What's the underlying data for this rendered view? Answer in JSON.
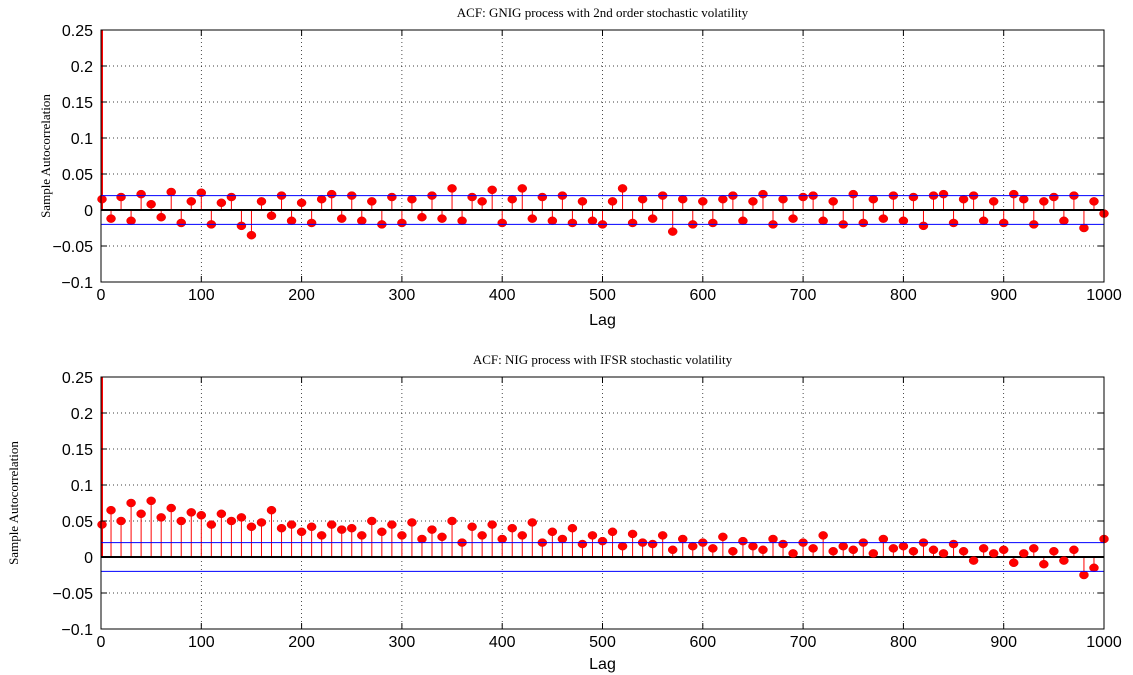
{
  "chart_data": [
    {
      "type": "stem",
      "title": "ACF: GNIG process with 2nd order stochastic volatility",
      "xlabel": "Lag",
      "ylabel": "Sample Autocorrelation",
      "xlim": [
        0,
        1000
      ],
      "ylim": [
        -0.1,
        0.25
      ],
      "x_ticks": [
        "0",
        "100",
        "200",
        "300",
        "400",
        "500",
        "600",
        "700",
        "800",
        "900",
        "1000"
      ],
      "y_ticks": [
        "−0.1",
        "−0.05",
        "0",
        "0.05",
        "0.1",
        "0.15",
        "0.2",
        "0.25"
      ],
      "grid": true,
      "confidence_bounds": [
        0.02,
        -0.02
      ],
      "lag0_value": 1.0,
      "sampled_lags": [
        1,
        10,
        20,
        30,
        40,
        50,
        60,
        70,
        80,
        90,
        100,
        110,
        120,
        130,
        140,
        150,
        160,
        170,
        180,
        190,
        200,
        210,
        220,
        230,
        240,
        250,
        260,
        270,
        280,
        290,
        300,
        310,
        320,
        330,
        340,
        350,
        360,
        370,
        380,
        390,
        400,
        410,
        420,
        430,
        440,
        450,
        460,
        470,
        480,
        490,
        500,
        510,
        520,
        530,
        540,
        550,
        560,
        570,
        580,
        590,
        600,
        610,
        620,
        630,
        640,
        650,
        660,
        670,
        680,
        690,
        700,
        710,
        720,
        730,
        740,
        750,
        760,
        770,
        780,
        790,
        800,
        810,
        820,
        830,
        840,
        850,
        860,
        870,
        880,
        890,
        900,
        910,
        920,
        930,
        940,
        950,
        960,
        970,
        980,
        990,
        1000
      ],
      "values": [
        0.015,
        -0.012,
        0.018,
        -0.015,
        0.022,
        0.008,
        -0.01,
        0.025,
        -0.018,
        0.012,
        0.024,
        -0.02,
        0.01,
        0.018,
        -0.022,
        -0.035,
        0.012,
        -0.008,
        0.02,
        -0.015,
        0.01,
        -0.018,
        0.015,
        0.022,
        -0.012,
        0.02,
        -0.015,
        0.012,
        -0.02,
        0.018,
        -0.018,
        0.015,
        -0.01,
        0.02,
        -0.012,
        0.03,
        -0.015,
        0.018,
        0.012,
        0.028,
        -0.018,
        0.015,
        0.03,
        -0.012,
        0.018,
        -0.015,
        0.02,
        -0.018,
        0.012,
        -0.015,
        -0.02,
        0.012,
        0.03,
        -0.018,
        0.015,
        -0.012,
        0.02,
        -0.03,
        0.015,
        -0.02,
        0.012,
        -0.018,
        0.015,
        0.02,
        -0.015,
        0.012,
        0.022,
        -0.02,
        0.015,
        -0.012,
        0.018,
        0.02,
        -0.015,
        0.012,
        -0.02,
        0.022,
        -0.018,
        0.015,
        -0.012,
        0.02,
        -0.015,
        0.018,
        -0.022,
        0.02,
        0.022,
        -0.018,
        0.015,
        0.02,
        -0.015,
        0.012,
        -0.018,
        0.022,
        0.015,
        -0.02,
        0.012,
        0.018,
        -0.015,
        0.02,
        -0.025,
        0.012,
        -0.005
      ]
    },
    {
      "type": "stem",
      "title": "ACF: NIG process with IFSR stochastic volatility",
      "xlabel": "Lag",
      "ylabel": "Sample Autocorrelation",
      "xlim": [
        0,
        1000
      ],
      "ylim": [
        -0.1,
        0.25
      ],
      "x_ticks": [
        "0",
        "100",
        "200",
        "300",
        "400",
        "500",
        "600",
        "700",
        "800",
        "900",
        "1000"
      ],
      "y_ticks": [
        "−0.1",
        "−0.05",
        "0",
        "0.05",
        "0.1",
        "0.15",
        "0.2",
        "0.25"
      ],
      "grid": true,
      "confidence_bounds": [
        0.02,
        -0.02
      ],
      "lag0_value": 1.0,
      "sampled_lags": [
        1,
        10,
        20,
        30,
        40,
        50,
        60,
        70,
        80,
        90,
        100,
        110,
        120,
        130,
        140,
        150,
        160,
        170,
        180,
        190,
        200,
        210,
        220,
        230,
        240,
        250,
        260,
        270,
        280,
        290,
        300,
        310,
        320,
        330,
        340,
        350,
        360,
        370,
        380,
        390,
        400,
        410,
        420,
        430,
        440,
        450,
        460,
        470,
        480,
        490,
        500,
        510,
        520,
        530,
        540,
        550,
        560,
        570,
        580,
        590,
        600,
        610,
        620,
        630,
        640,
        650,
        660,
        670,
        680,
        690,
        700,
        710,
        720,
        730,
        740,
        750,
        760,
        770,
        780,
        790,
        800,
        810,
        820,
        830,
        840,
        850,
        860,
        870,
        880,
        890,
        900,
        910,
        920,
        930,
        940,
        950,
        960,
        970,
        980,
        990,
        1000
      ],
      "values": [
        0.045,
        0.065,
        0.05,
        0.075,
        0.06,
        0.078,
        0.055,
        0.068,
        0.05,
        0.062,
        0.058,
        0.045,
        0.06,
        0.05,
        0.055,
        0.042,
        0.048,
        0.065,
        0.04,
        0.045,
        0.035,
        0.042,
        0.03,
        0.045,
        0.038,
        0.04,
        0.03,
        0.05,
        0.035,
        0.045,
        0.03,
        0.048,
        0.025,
        0.038,
        0.028,
        0.05,
        0.02,
        0.042,
        0.03,
        0.045,
        0.025,
        0.04,
        0.03,
        0.048,
        0.02,
        0.035,
        0.025,
        0.04,
        0.018,
        0.03,
        0.022,
        0.035,
        0.015,
        0.032,
        0.02,
        0.018,
        0.03,
        0.01,
        0.025,
        0.015,
        0.02,
        0.012,
        0.028,
        0.008,
        0.022,
        0.015,
        0.01,
        0.025,
        0.018,
        0.005,
        0.02,
        0.012,
        0.03,
        0.008,
        0.015,
        0.01,
        0.02,
        0.005,
        0.025,
        0.012,
        0.015,
        0.008,
        0.02,
        0.01,
        0.005,
        0.018,
        0.008,
        -0.005,
        0.012,
        0.005,
        0.01,
        -0.008,
        0.005,
        0.012,
        -0.01,
        0.008,
        -0.005,
        0.01,
        -0.025,
        -0.015,
        0.025
      ]
    }
  ]
}
